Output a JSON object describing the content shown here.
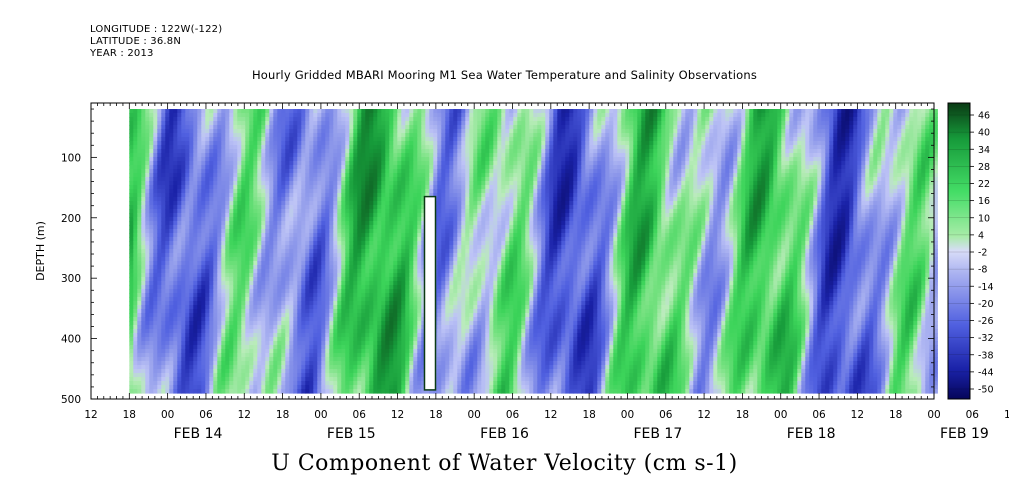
{
  "header": {
    "longitude": "LONGITUDE : 122W(-122)",
    "latitude": "LATITUDE : 36.8N",
    "year": "YEAR : 2013"
  },
  "title": "Hourly Gridded MBARI Mooring M1 Sea Water Temperature and Salinity Observations",
  "variable_title": "U Component of Water Velocity (cm s-1)",
  "colors": {
    "negative_extreme": "#0a0a6e",
    "negative_mid": "#8c9af0",
    "near_zero": "#c8e8c8",
    "positive_mid": "#44dd66",
    "positive_extreme": "#0a4a1a"
  },
  "chart_data": {
    "type": "heatmap",
    "title": "Hourly Gridded MBARI Mooring M1 Sea Water Temperature and Salinity Observations",
    "xlabel": "",
    "ylabel": "DEPTH (m)",
    "ylim": [
      500,
      10
    ],
    "y_inverted": true,
    "x_range": [
      "2013-02-14T12:00",
      "2013-02-20T00:00"
    ],
    "data_x_range": [
      "2013-02-14T18:00",
      "2013-02-20T00:00"
    ],
    "data_y_range": [
      20,
      485
    ],
    "x_hour_ticks": [
      "12",
      "18",
      "00",
      "06",
      "12",
      "18",
      "00",
      "06",
      "12",
      "18",
      "00",
      "06",
      "12",
      "18",
      "00",
      "06",
      "12",
      "18",
      "00",
      "06",
      "12",
      "18",
      "00",
      "06",
      "12",
      "18",
      "00"
    ],
    "x_day_labels": [
      "FEB 14",
      "FEB 15",
      "FEB 16",
      "FEB 17",
      "FEB 18",
      "FEB 19"
    ],
    "y_ticks": [
      "100",
      "200",
      "300",
      "400",
      "500"
    ],
    "y_tick_values": [
      100,
      200,
      300,
      400,
      500
    ],
    "colorbar_labels": [
      "46",
      "40",
      "34",
      "28",
      "22",
      "16",
      "10",
      "4",
      "-2",
      "-8",
      "-14",
      "-20",
      "-26",
      "-32",
      "-38",
      "-44",
      "-50"
    ],
    "colorbar_bounds": [
      -50,
      50
    ],
    "gap": {
      "time": "2013-02-16T17:00",
      "depth_range": [
        165,
        485
      ]
    },
    "pattern": "alternating vertical bands of positive (green) and negative (blue) U velocity, mostly between -20 and 20 cm s-1"
  }
}
